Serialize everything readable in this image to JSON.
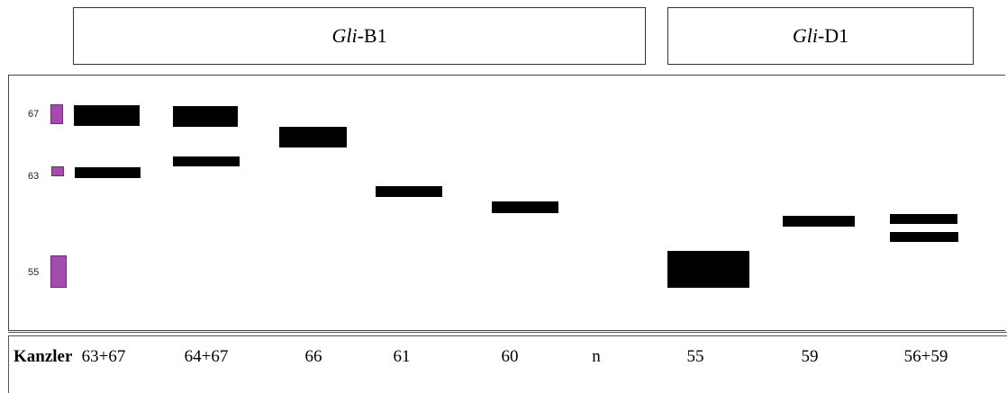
{
  "loci": {
    "b1": {
      "italic": "Gli",
      "suffix": "-B1"
    },
    "d1": {
      "italic": "Gli",
      "suffix": "-D1"
    }
  },
  "markers": [
    {
      "label": "67"
    },
    {
      "label": "63"
    },
    {
      "label": "55"
    }
  ],
  "row_label": "Kanzler",
  "lanes": [
    "63+67",
    "64+67",
    "66",
    "61",
    "60",
    "n",
    "55",
    "59",
    "56+59"
  ],
  "colors": {
    "band": "#000000",
    "marker": "#a54bb0"
  }
}
